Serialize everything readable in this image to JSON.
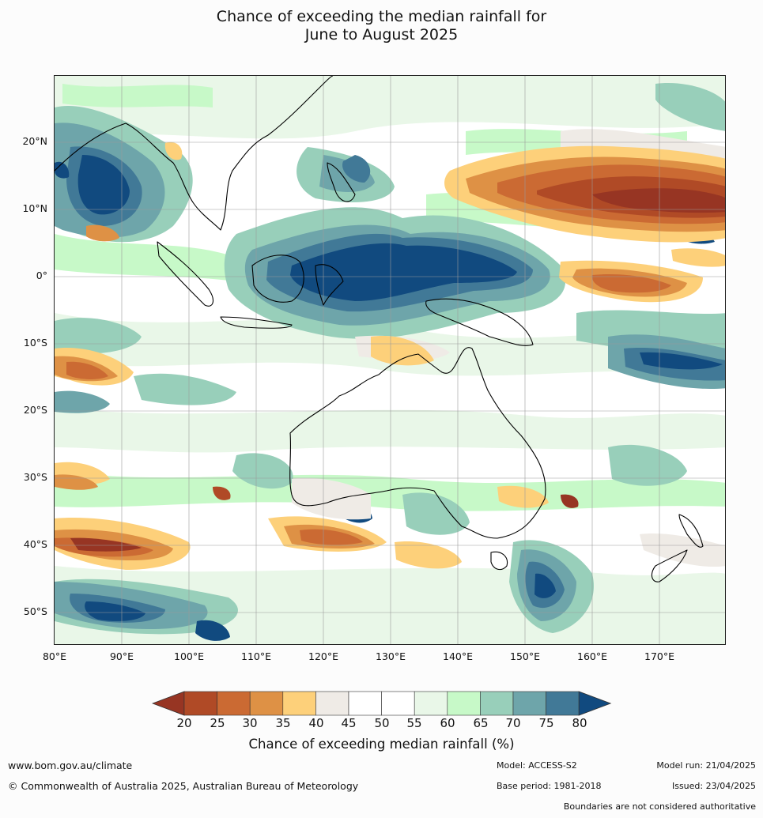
{
  "title_line1": "Chance of exceeding the median rainfall for",
  "title_line2": "June to August 2025",
  "lat_labels": [
    "20°N",
    "10°N",
    "0°",
    "10°S",
    "20°S",
    "30°S",
    "40°S",
    "50°S"
  ],
  "lon_labels": [
    "80°E",
    "90°E",
    "100°E",
    "110°E",
    "120°E",
    "130°E",
    "140°E",
    "150°E",
    "160°E",
    "170°E"
  ],
  "colorbar": {
    "ticks": [
      "20",
      "25",
      "30",
      "35",
      "40",
      "45",
      "50",
      "55",
      "60",
      "65",
      "70",
      "75",
      "80"
    ],
    "colors": [
      "#973523",
      "#b04a26",
      "#cb6a33",
      "#de9145",
      "#fdd07a",
      "#efebe6",
      "#ffffff",
      "#ffffff",
      "#e9f7e8",
      "#c7f9c8",
      "#98cfba",
      "#6ea5aa",
      "#417997",
      "#114a7f"
    ],
    "label": "Chance of exceeding median rainfall (%)"
  },
  "footer": {
    "website": "www.bom.gov.au/climate",
    "copyright": "© Commonwealth of Australia 2025, Australian Bureau of Meteorology",
    "model": "Model: ACCESS-S2",
    "base_period": "Base period: 1981-2018",
    "model_run": "Model run: 21/04/2025",
    "issued": "Issued: 23/04/2025",
    "boundaries": "Boundaries are not considered authoritative"
  }
}
